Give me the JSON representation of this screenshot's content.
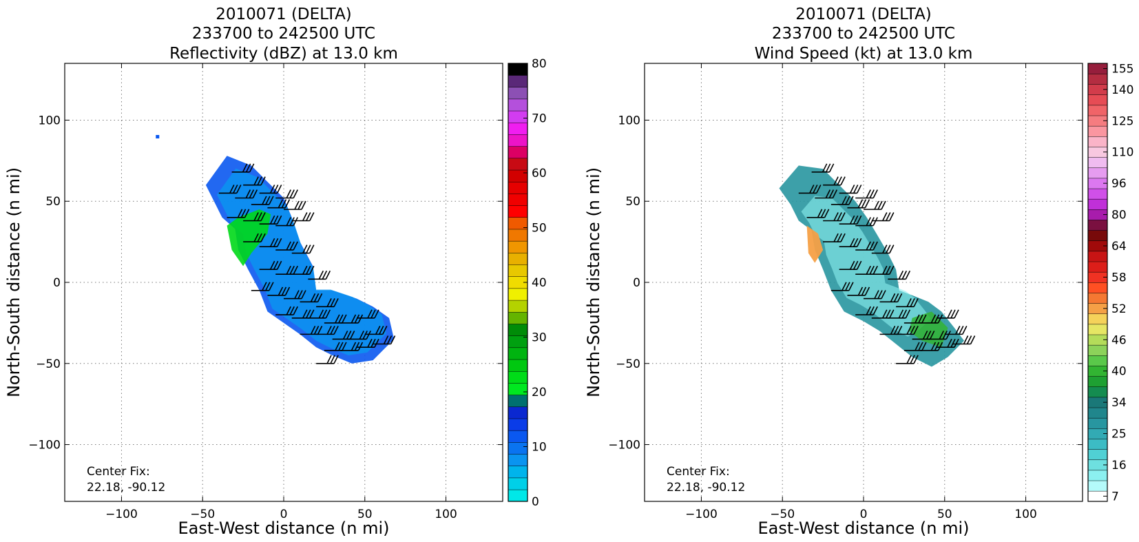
{
  "panels": [
    {
      "id": "reflectivity",
      "title_lines": [
        "2010071 (DELTA)",
        "233700 to 242500 UTC",
        "Reflectivity (dBZ) at 13.0 km"
      ],
      "xlabel": "East-West distance (n mi)",
      "ylabel": "North-South distance (n mi)",
      "center_fix_label": "Center Fix:",
      "center_fix_value": "22.18, -90.12",
      "colorbar": {
        "label": "dBZ",
        "levels": [
          0,
          2.5,
          5,
          7.5,
          10,
          12.5,
          15,
          17.5,
          20,
          22.5,
          25,
          27.5,
          30,
          32.5,
          35,
          37.5,
          40,
          42.5,
          45,
          47.5,
          50,
          52.5,
          55,
          57.5,
          60,
          62.5,
          65,
          67.5,
          70,
          72.5,
          75,
          77.5,
          80
        ],
        "colors": [
          "#00e8e8",
          "#00d0e8",
          "#00b4ec",
          "#0a94f0",
          "#0a74f0",
          "#0a58f0",
          "#0a3ce8",
          "#0a28d0",
          "#007070",
          "#00e820",
          "#00dc18",
          "#00c810",
          "#00b410",
          "#00a010",
          "#008c08",
          "#64b400",
          "#b4d200",
          "#f0f000",
          "#f0dc00",
          "#e8c800",
          "#e8b000",
          "#f09600",
          "#f07800",
          "#f05a00",
          "#ff0000",
          "#f00000",
          "#e60000",
          "#d20000",
          "#c80a14",
          "#dc0064",
          "#ec14c8",
          "#f01ef0",
          "#d23cf0",
          "#b450dc",
          "#8c50b4",
          "#5a2878",
          "#000000"
        ],
        "tick_labels": [
          "0",
          "10",
          "20",
          "30",
          "40",
          "50",
          "60",
          "70",
          "80"
        ]
      }
    },
    {
      "id": "wind_speed",
      "title_lines": [
        "2010071 (DELTA)",
        "233700 to 242500 UTC",
        "Wind Speed (kt) at 13.0 km"
      ],
      "xlabel": "East-West distance (n mi)",
      "ylabel": "North-South distance (n mi)",
      "center_fix_label": "Center Fix:",
      "center_fix_value": "22.18, -90.12",
      "colorbar": {
        "label": "kt",
        "colors": [
          "#ffffff",
          "#b4fafa",
          "#8cf0f0",
          "#6ee0e0",
          "#50d0d4",
          "#3cbcc4",
          "#32aab4",
          "#2896a0",
          "#20868c",
          "#1a7878",
          "#148c50",
          "#1ea032",
          "#32b432",
          "#5ac84a",
          "#8cd25a",
          "#b4dc5a",
          "#e6e664",
          "#f5d25a",
          "#f5a046",
          "#f57832",
          "#ff5023",
          "#f03223",
          "#dc1e19",
          "#c81414",
          "#a00a0a",
          "#780a0a",
          "#7a1040",
          "#a81cac",
          "#c030d8",
          "#d050e8",
          "#dc78f0",
          "#e69cf0",
          "#f0bcf0",
          "#f8c8e0",
          "#fab4c8",
          "#fa96a0",
          "#f57c80",
          "#f06468",
          "#e64c55",
          "#d23c4b",
          "#b42d41",
          "#961e3c"
        ],
        "tick_labels": [
          "7",
          "16",
          "25",
          "34",
          "40",
          "46",
          "52",
          "58",
          "64",
          "80",
          "96",
          "110",
          "125",
          "140",
          "155"
        ]
      }
    }
  ],
  "chart_data": [
    {
      "type": "heatmap",
      "title": "2010071 (DELTA) 233700 to 242500 UTC Reflectivity (dBZ) at 13.0 km",
      "xlabel": "East-West distance (n mi)",
      "ylabel": "North-South distance (n mi)",
      "xlim": [
        -135,
        135
      ],
      "ylim": [
        -135,
        135
      ],
      "xticks": [
        -100,
        -50,
        0,
        50,
        100
      ],
      "yticks": [
        -100,
        -50,
        0,
        50,
        100
      ],
      "grid": true,
      "colorbar_range": [
        0,
        80
      ],
      "colorbar_ticks": [
        0,
        10,
        20,
        30,
        40,
        50,
        60,
        70,
        80
      ],
      "echo_outline": [
        [
          -35,
          78
        ],
        [
          -48,
          60
        ],
        [
          -42,
          48
        ],
        [
          -38,
          40
        ],
        [
          -30,
          33
        ],
        [
          -28,
          20
        ],
        [
          -22,
          8
        ],
        [
          -15,
          -5
        ],
        [
          -10,
          -18
        ],
        [
          0,
          -25
        ],
        [
          10,
          -32
        ],
        [
          20,
          -40
        ],
        [
          30,
          -45
        ],
        [
          42,
          -50
        ],
        [
          55,
          -48
        ],
        [
          68,
          -35
        ],
        [
          65,
          -22
        ],
        [
          55,
          -15
        ],
        [
          45,
          -10
        ],
        [
          30,
          -5
        ],
        [
          20,
          -5
        ],
        [
          18,
          10
        ],
        [
          10,
          25
        ],
        [
          5,
          40
        ],
        [
          0,
          52
        ],
        [
          -10,
          62
        ],
        [
          -20,
          72
        ]
      ],
      "moderate_echo": [
        [
          -35,
          35
        ],
        [
          -28,
          40
        ],
        [
          -15,
          45
        ],
        [
          -8,
          42
        ],
        [
          -10,
          30
        ],
        [
          -20,
          18
        ],
        [
          -25,
          10
        ],
        [
          -32,
          20
        ]
      ],
      "outlier_point": [
        -78,
        90
      ],
      "center_fix": "22.18, -90.12",
      "wind_barbs": [
        [
          -32,
          68
        ],
        [
          -25,
          60
        ],
        [
          -15,
          55
        ],
        [
          -5,
          52
        ],
        [
          -40,
          55
        ],
        [
          -30,
          52
        ],
        [
          -20,
          48
        ],
        [
          -10,
          46
        ],
        [
          0,
          45
        ],
        [
          -35,
          40
        ],
        [
          -25,
          38
        ],
        [
          -15,
          36
        ],
        [
          -5,
          35
        ],
        [
          5,
          38
        ],
        [
          -25,
          25
        ],
        [
          -15,
          22
        ],
        [
          -5,
          20
        ],
        [
          5,
          18
        ],
        [
          -15,
          8
        ],
        [
          -5,
          5
        ],
        [
          5,
          5
        ],
        [
          15,
          2
        ],
        [
          -20,
          -5
        ],
        [
          -10,
          -8
        ],
        [
          0,
          -10
        ],
        [
          10,
          -12
        ],
        [
          20,
          -15
        ],
        [
          -5,
          -20
        ],
        [
          5,
          -22
        ],
        [
          15,
          -22
        ],
        [
          25,
          -25
        ],
        [
          35,
          -25
        ],
        [
          45,
          -22
        ],
        [
          10,
          -32
        ],
        [
          20,
          -32
        ],
        [
          30,
          -35
        ],
        [
          40,
          -35
        ],
        [
          50,
          -32
        ],
        [
          25,
          -42
        ],
        [
          35,
          -42
        ],
        [
          45,
          -40
        ],
        [
          55,
          -38
        ],
        [
          20,
          -50
        ]
      ]
    },
    {
      "type": "heatmap",
      "title": "2010071 (DELTA) 233700 to 242500 UTC Wind Speed (kt) at 13.0 km",
      "xlabel": "East-West distance (n mi)",
      "ylabel": "North-South distance (n mi)",
      "xlim": [
        -135,
        135
      ],
      "ylim": [
        -135,
        135
      ],
      "xticks": [
        -100,
        -50,
        0,
        50,
        100
      ],
      "yticks": [
        -100,
        -50,
        0,
        50,
        100
      ],
      "grid": true,
      "colorbar_range": [
        7,
        160
      ],
      "colorbar_ticks": [
        7,
        16,
        25,
        34,
        40,
        46,
        52,
        58,
        64,
        80,
        96,
        110,
        125,
        140,
        155
      ],
      "wind_field_outline": [
        [
          -40,
          72
        ],
        [
          -52,
          58
        ],
        [
          -45,
          48
        ],
        [
          -40,
          38
        ],
        [
          -32,
          32
        ],
        [
          -30,
          20
        ],
        [
          -25,
          8
        ],
        [
          -20,
          -5
        ],
        [
          -12,
          -18
        ],
        [
          0,
          -24
        ],
        [
          10,
          -30
        ],
        [
          20,
          -38
        ],
        [
          30,
          -46
        ],
        [
          42,
          -52
        ],
        [
          52,
          -46
        ],
        [
          62,
          -36
        ],
        [
          56,
          -28
        ],
        [
          48,
          -18
        ],
        [
          40,
          -12
        ],
        [
          30,
          -8
        ],
        [
          22,
          -5
        ],
        [
          20,
          8
        ],
        [
          15,
          18
        ],
        [
          8,
          30
        ],
        [
          2,
          40
        ],
        [
          -5,
          50
        ],
        [
          -15,
          60
        ],
        [
          -25,
          70
        ]
      ],
      "high_wind_region": [
        [
          -35,
          35
        ],
        [
          -28,
          30
        ],
        [
          -25,
          20
        ],
        [
          -30,
          12
        ],
        [
          -34,
          18
        ]
      ],
      "center_fix": "22.18, -90.12"
    }
  ]
}
